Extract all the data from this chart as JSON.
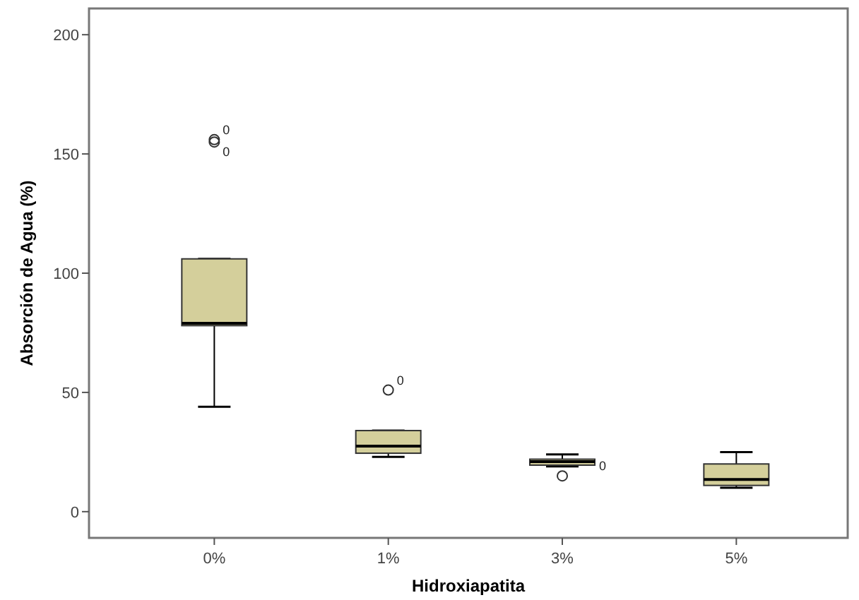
{
  "chart_data": {
    "type": "box",
    "xlabel": "Hidroxiapatita",
    "ylabel": "Absorción de Agua (%)",
    "categories": [
      "0%",
      "1%",
      "3%",
      "5%"
    ],
    "color": "#d4cf9b",
    "boxes": [
      {
        "low": 44,
        "q1": 78,
        "median": 79,
        "q3": 106,
        "high": 106,
        "outliers": [
          155,
          156
        ]
      },
      {
        "low": 23,
        "q1": 24.5,
        "median": 27.5,
        "q3": 34,
        "high": 34,
        "outliers": [
          51
        ]
      },
      {
        "low": 19,
        "q1": 19.5,
        "median": 21,
        "q3": 22,
        "high": 24,
        "outliers": [
          15
        ]
      },
      {
        "low": 10,
        "q1": 11,
        "median": 13.5,
        "q3": 20,
        "high": 25
      }
    ],
    "ylim": [
      -11,
      211
    ],
    "yticks": [
      0,
      50,
      100,
      150,
      200
    ],
    "annotations": [
      "0",
      "0",
      "0",
      "0"
    ]
  }
}
